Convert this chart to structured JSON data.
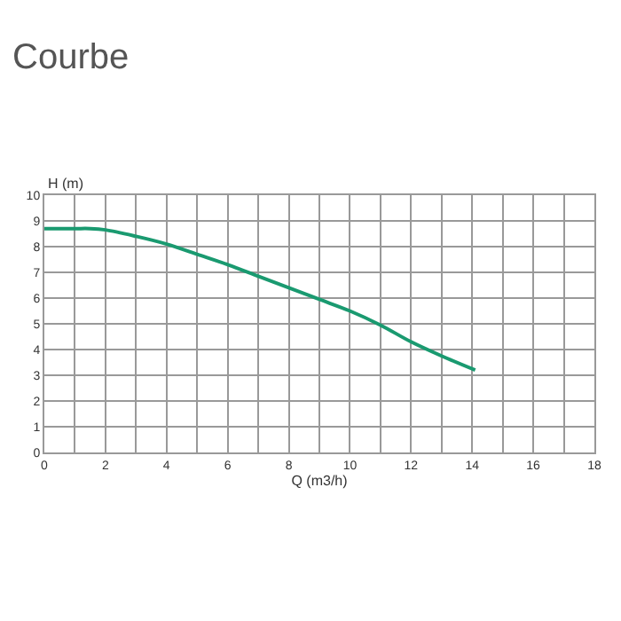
{
  "chart_data": {
    "type": "line",
    "title": "Courbe",
    "xlabel": "Q (m3/h)",
    "ylabel": "H (m)",
    "x": [
      0,
      1,
      1.5,
      2,
      3,
      4,
      5,
      6,
      7,
      8,
      9,
      10,
      11,
      12,
      13,
      14.1
    ],
    "series": [
      {
        "color": "#1a9a70",
        "values": [
          8.7,
          8.7,
          8.7,
          8.65,
          8.4,
          8.1,
          7.7,
          7.3,
          6.85,
          6.4,
          5.95,
          5.5,
          4.95,
          4.3,
          3.75,
          3.2
        ]
      }
    ],
    "xlim": [
      0,
      18
    ],
    "xticks": [
      0,
      2,
      4,
      6,
      8,
      10,
      12,
      14,
      16,
      18
    ],
    "ylim": [
      0,
      10
    ],
    "yticks": [
      0,
      1,
      2,
      3,
      4,
      5,
      6,
      7,
      8,
      9,
      10
    ],
    "grid": true,
    "legend": false,
    "marker": "none",
    "line_style": "solid"
  }
}
